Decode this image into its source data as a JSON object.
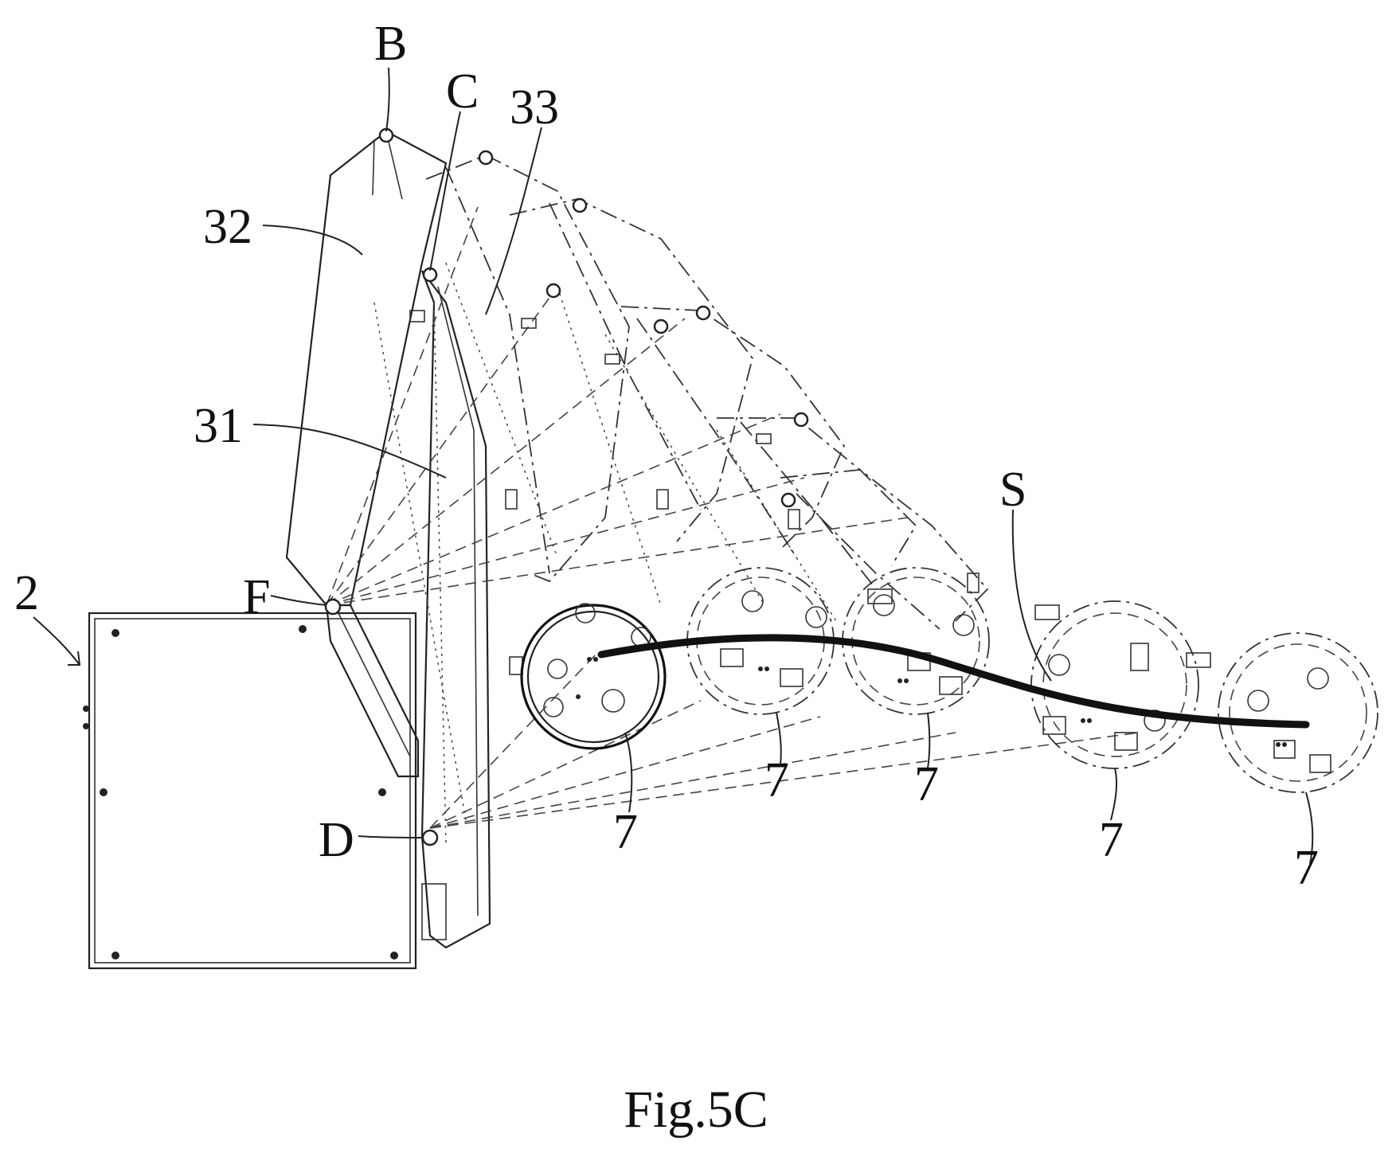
{
  "figure": {
    "caption": "Fig.5C"
  },
  "labels": {
    "b": "B",
    "c": "C",
    "l33": "33",
    "l32": "32",
    "l31": "31",
    "f": "F",
    "l2": "2",
    "d": "D",
    "s": "S",
    "w1": "7",
    "w2": "7",
    "w3": "7",
    "w4": "7",
    "w5": "7"
  }
}
